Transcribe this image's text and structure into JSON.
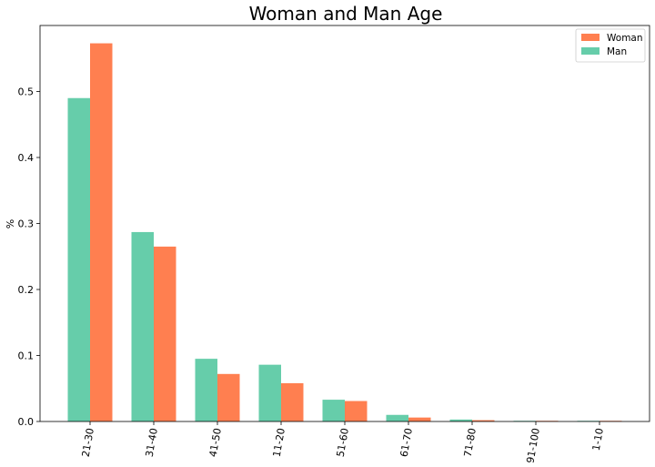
{
  "chart_data": {
    "type": "bar",
    "title": "Woman and Man Age",
    "xlabel": "",
    "ylabel": "%",
    "categories": [
      "21-30",
      "31-40",
      "41-50",
      "11-20",
      "51-60",
      "61-70",
      "71-80",
      "91-100",
      "1-10"
    ],
    "series": [
      {
        "name": "Man",
        "color": "#66cdaa",
        "values": [
          0.49,
          0.287,
          0.095,
          0.086,
          0.033,
          0.01,
          0.003,
          0.001,
          0.001
        ]
      },
      {
        "name": "Woman",
        "color": "#ff7f50",
        "values": [
          0.573,
          0.265,
          0.072,
          0.058,
          0.031,
          0.006,
          0.002,
          0.001,
          0.001
        ]
      }
    ],
    "yticks": [
      0.0,
      0.1,
      0.2,
      0.3,
      0.4,
      0.5
    ],
    "ytick_labels": [
      "0.0",
      "0.1",
      "0.2",
      "0.3",
      "0.4",
      "0.5"
    ],
    "ylim": [
      0,
      0.6
    ],
    "grid": false,
    "legend": {
      "placement": "top-right",
      "entries": [
        {
          "label": "Woman",
          "color": "#ff7f50"
        },
        {
          "label": "Man",
          "color": "#66cdaa"
        }
      ]
    },
    "x_tick_rotation": -80
  }
}
